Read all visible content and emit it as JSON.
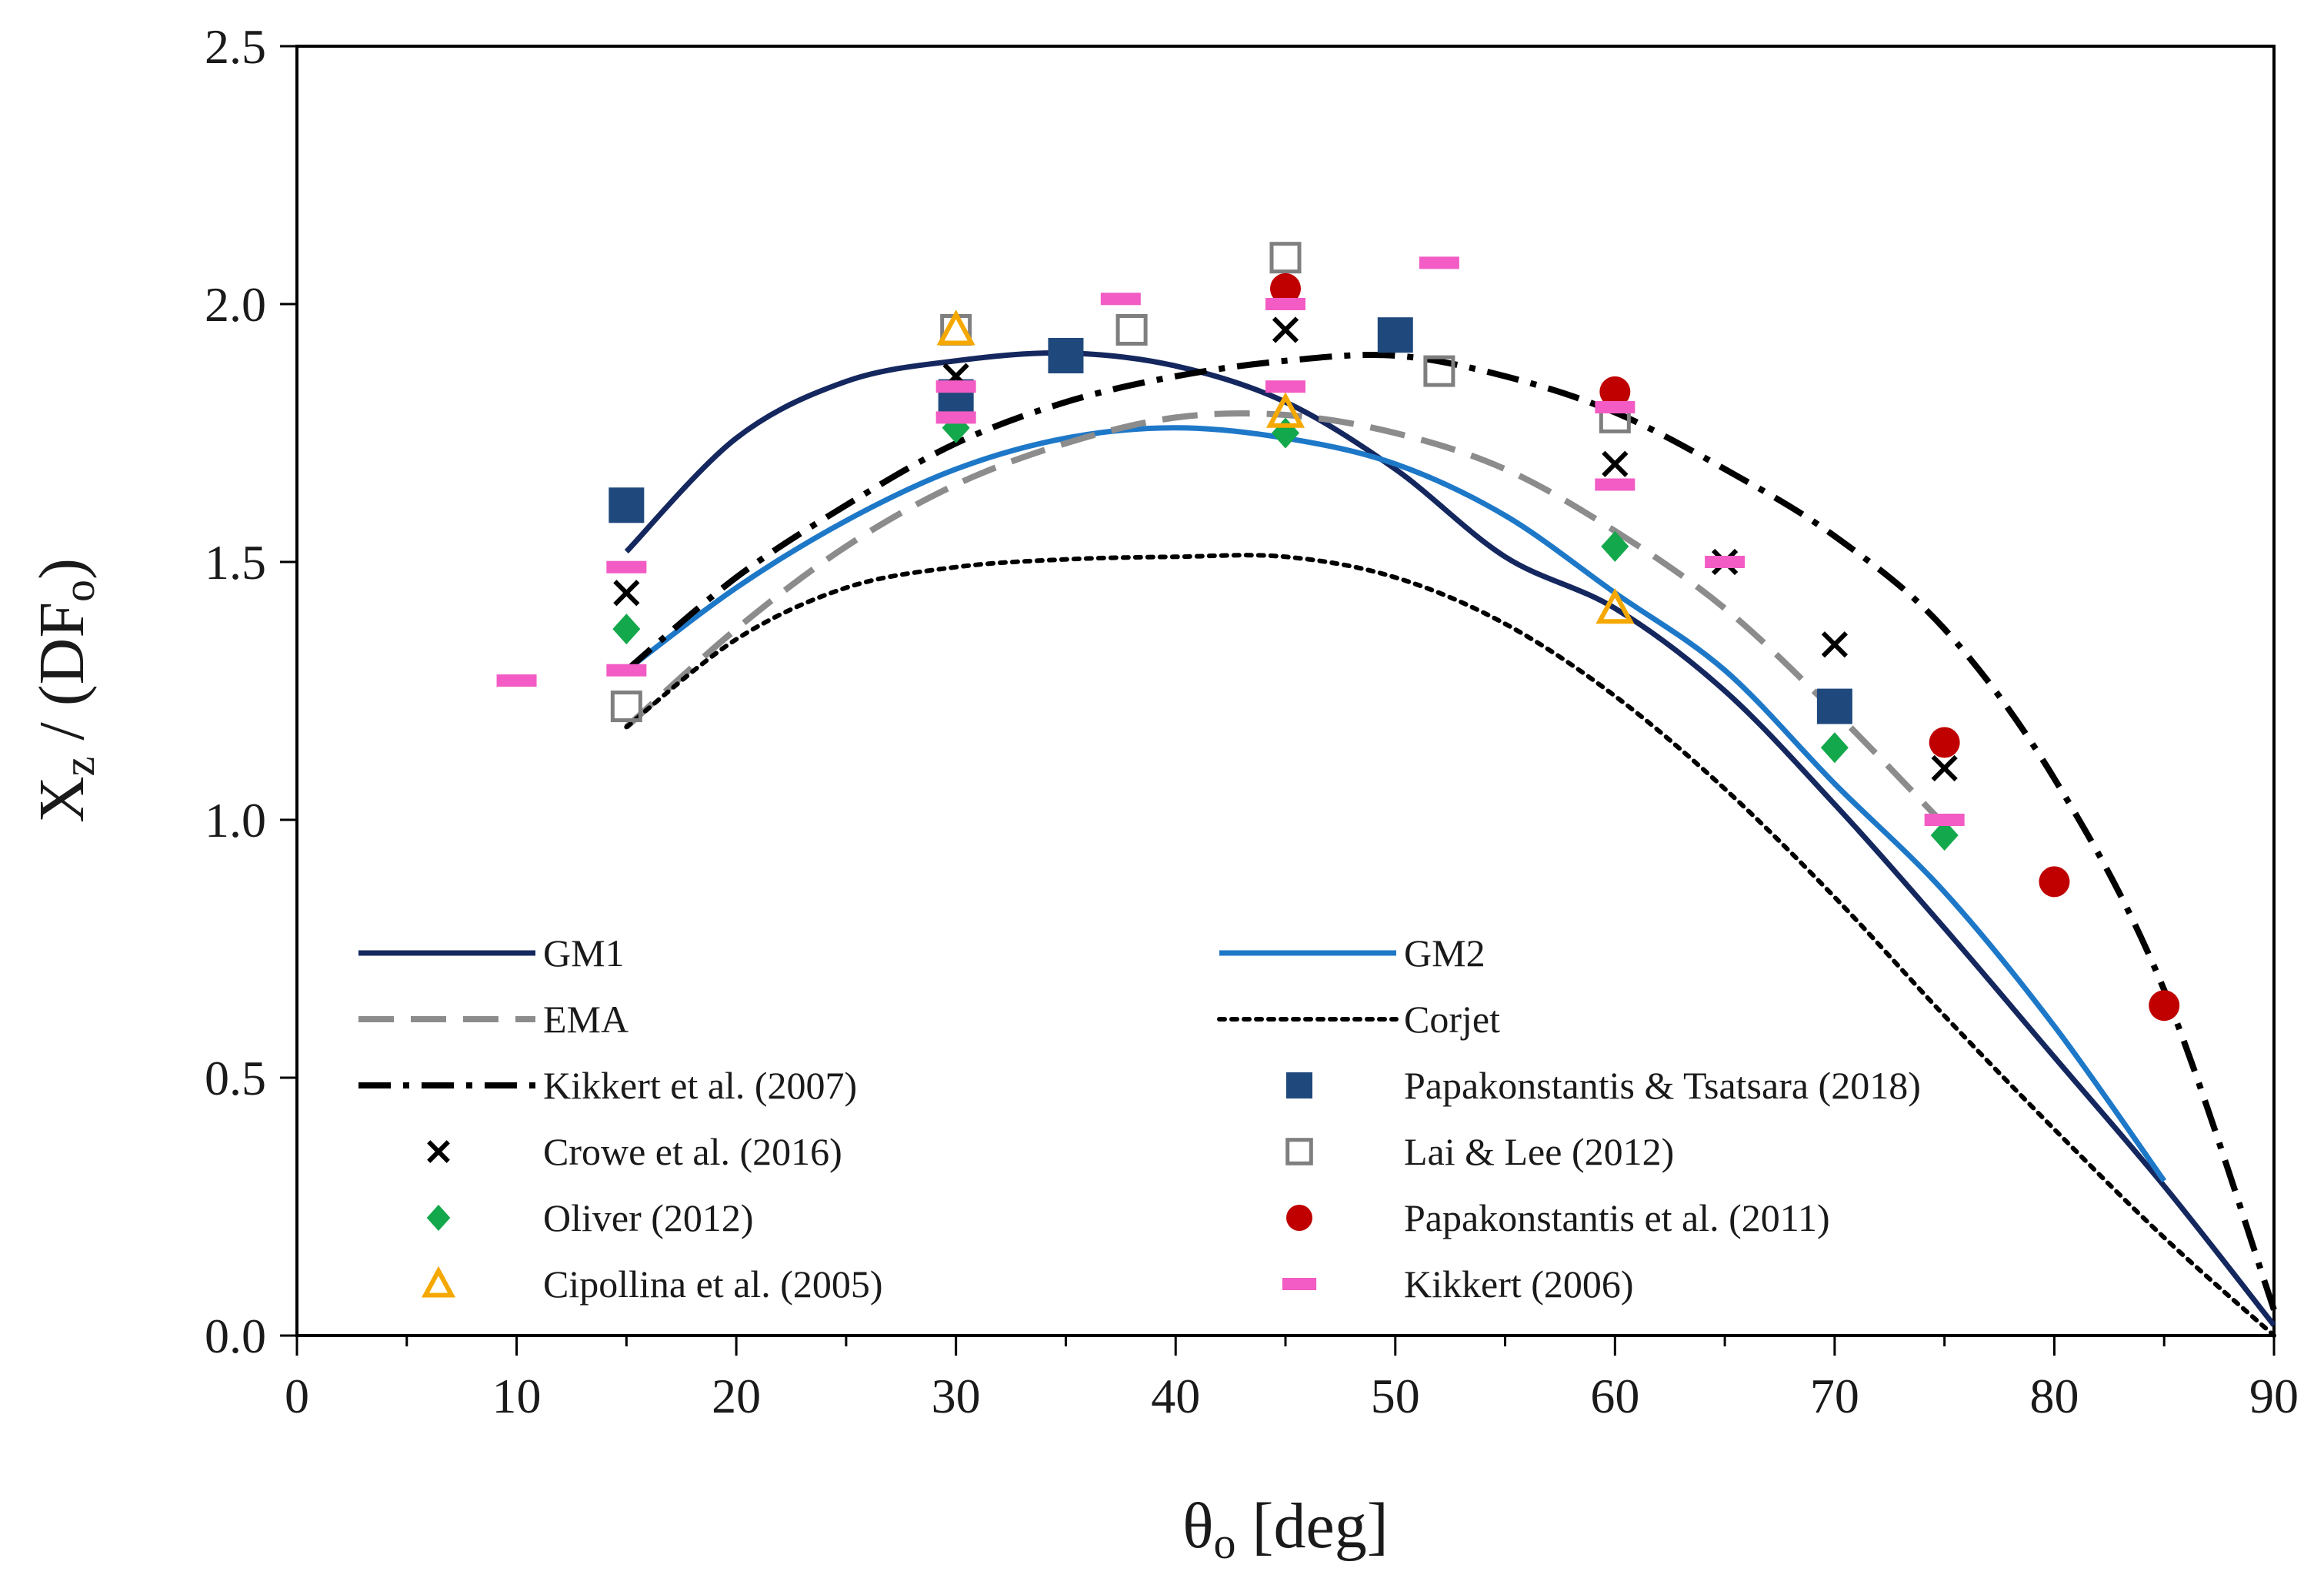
{
  "chart_data": {
    "type": "line",
    "title": "",
    "xlabel": "θo [deg]",
    "xlabel_main": "θ",
    "xlabel_sub": "o",
    "xlabel_rest": " [deg]",
    "ylabel": "Xz / (DFo)",
    "ylabel_main": "X",
    "ylabel_sub1": "z",
    "ylabel_mid": " / (DF",
    "ylabel_sub2": "o",
    "ylabel_end": ")",
    "xlim": [
      0,
      90
    ],
    "ylim": [
      0,
      2.5
    ],
    "xticks": [
      "0",
      "10",
      "20",
      "30",
      "40",
      "50",
      "60",
      "70",
      "80",
      "90"
    ],
    "yticks": [
      "0.0",
      "0.5",
      "1.0",
      "1.5",
      "2.0",
      "2.5"
    ],
    "grid": false,
    "legend_position": "bottom-left, two columns",
    "series": [
      {
        "name": "GM1",
        "kind": "line",
        "color": "#14275e",
        "style": "solid",
        "x": [
          15,
          20,
          25,
          30,
          35,
          40,
          45,
          50,
          55,
          60,
          65,
          70,
          75,
          80,
          85,
          90
        ],
        "y": [
          1.52,
          1.74,
          1.85,
          1.89,
          1.905,
          1.88,
          1.81,
          1.68,
          1.51,
          1.41,
          1.25,
          1.03,
          0.79,
          0.54,
          0.29,
          0.02
        ]
      },
      {
        "name": "GM2",
        "kind": "line",
        "color": "#1e78c8",
        "style": "solid",
        "x": [
          15,
          20,
          25,
          30,
          35,
          40,
          45,
          50,
          55,
          60,
          65,
          70,
          75,
          80,
          85
        ],
        "y": [
          1.29,
          1.45,
          1.58,
          1.68,
          1.74,
          1.76,
          1.74,
          1.69,
          1.59,
          1.44,
          1.29,
          1.07,
          0.86,
          0.6,
          0.3
        ]
      },
      {
        "name": "EMA",
        "kind": "line",
        "color": "#8c8c8c",
        "style": "dashed",
        "x": [
          15,
          20,
          25,
          30,
          35,
          40,
          45,
          50,
          55,
          60,
          65,
          70,
          75
        ],
        "y": [
          1.18,
          1.37,
          1.53,
          1.65,
          1.73,
          1.78,
          1.785,
          1.75,
          1.68,
          1.56,
          1.41,
          1.21,
          0.99
        ]
      },
      {
        "name": "Corjet",
        "kind": "line",
        "color": "#000000",
        "style": "dotted",
        "x": [
          15,
          20,
          25,
          30,
          35,
          40,
          45,
          50,
          55,
          60,
          65,
          70,
          75,
          80,
          85,
          90
        ],
        "y": [
          1.18,
          1.35,
          1.45,
          1.49,
          1.505,
          1.51,
          1.51,
          1.47,
          1.38,
          1.24,
          1.06,
          0.85,
          0.62,
          0.4,
          0.19,
          0.0
        ]
      },
      {
        "name": "Kikkert et al. (2007)",
        "kind": "line",
        "color": "#000000",
        "style": "dashdot",
        "x": [
          15,
          20,
          25,
          30,
          35,
          40,
          45,
          50,
          55,
          60,
          65,
          70,
          75,
          80,
          85,
          90
        ],
        "y": [
          1.29,
          1.47,
          1.61,
          1.73,
          1.81,
          1.86,
          1.89,
          1.9,
          1.86,
          1.79,
          1.68,
          1.55,
          1.37,
          1.08,
          0.67,
          0.05
        ]
      },
      {
        "name": "Papakonstantis & Tsatsara (2018)",
        "kind": "scatter",
        "marker": "square-filled",
        "color": "#1f497d",
        "x": [
          15,
          30,
          35,
          50,
          70
        ],
        "y": [
          1.61,
          1.82,
          1.9,
          1.94,
          1.22
        ]
      },
      {
        "name": "Crowe et al. (2016)",
        "kind": "scatter",
        "marker": "x",
        "color": "#000000",
        "x": [
          15,
          30,
          45,
          60,
          65,
          70,
          75
        ],
        "y": [
          1.44,
          1.86,
          1.95,
          1.69,
          1.5,
          1.34,
          1.1
        ]
      },
      {
        "name": "Lai & Lee (2012)",
        "kind": "scatter",
        "marker": "square-open",
        "color": "#7f7f7f",
        "x": [
          15,
          30,
          38,
          45,
          52,
          60
        ],
        "y": [
          1.22,
          1.95,
          1.95,
          2.09,
          1.87,
          1.78
        ]
      },
      {
        "name": "Oliver (2012)",
        "kind": "scatter",
        "marker": "diamond",
        "color": "#13a84b",
        "x": [
          15,
          30,
          45,
          60,
          70,
          75
        ],
        "y": [
          1.37,
          1.76,
          1.75,
          1.53,
          1.14,
          0.97
        ]
      },
      {
        "name": "Papakonstantis et al. (2011)",
        "kind": "scatter",
        "marker": "circle",
        "color": "#c00000",
        "x": [
          45,
          60,
          75,
          80,
          85
        ],
        "y": [
          2.03,
          1.83,
          1.15,
          0.88,
          0.64
        ]
      },
      {
        "name": "Cipollina et al. (2005)",
        "kind": "scatter",
        "marker": "triangle-open",
        "color": "#f5a800",
        "x": [
          30,
          45,
          60
        ],
        "y": [
          1.95,
          1.79,
          1.41
        ]
      },
      {
        "name": "Kikkert (2006)",
        "kind": "scatter",
        "marker": "dash",
        "color": "#f25cc4",
        "x": [
          10,
          15,
          15,
          30,
          30,
          37.5,
          45,
          45,
          52,
          60,
          60,
          65,
          75
        ],
        "y": [
          1.27,
          1.49,
          1.29,
          1.84,
          1.78,
          2.01,
          2.0,
          1.84,
          2.08,
          1.8,
          1.65,
          1.5,
          1.0
        ]
      }
    ],
    "legend": [
      {
        "series": "GM1",
        "label": "GM1"
      },
      {
        "series": "GM2",
        "label": "GM2"
      },
      {
        "series": "EMA",
        "label": "EMA"
      },
      {
        "series": "Corjet",
        "label": "Corjet"
      },
      {
        "series": "Kikkert et al. (2007)",
        "label": "Kikkert et al. (2007)"
      },
      {
        "series": "Papakonstantis & Tsatsara (2018)",
        "label": "Papakonstantis & Tsatsara (2018)"
      },
      {
        "series": "Crowe et al. (2016)",
        "label": "Crowe et al. (2016)"
      },
      {
        "series": "Lai & Lee (2012)",
        "label": "Lai & Lee (2012)"
      },
      {
        "series": "Oliver (2012)",
        "label": "Oliver (2012)"
      },
      {
        "series": "Papakonstantis et al. (2011)",
        "label": "Papakonstantis et al. (2011)"
      },
      {
        "series": "Cipollina et al. (2005)",
        "label": "Cipollina et al. (2005)"
      },
      {
        "series": "Kikkert (2006)",
        "label": "Kikkert (2006)"
      }
    ]
  }
}
